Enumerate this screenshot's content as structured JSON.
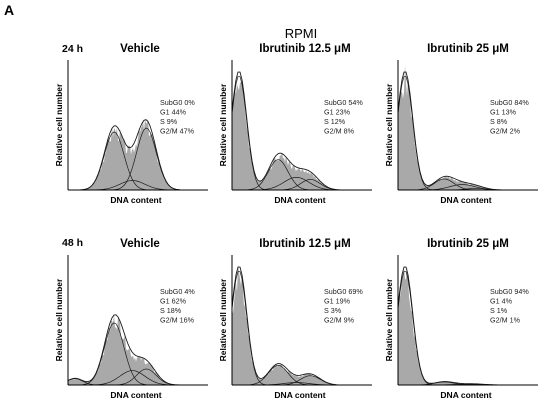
{
  "figure": {
    "panel_letter": "A",
    "condition": "RPMI",
    "xlabel": "DNA content",
    "ylabel": "Relative cell number"
  },
  "chart_data": [
    {
      "type": "histogram",
      "time": "24 h",
      "title": "Vehicle",
      "stats": {
        "SubG0": 0,
        "G1": 44,
        "S": 9,
        "G2/M": 47
      },
      "stat_labels": [
        "SubG0 0%",
        "G1 44%",
        "S 9%",
        "G2/M 47%"
      ]
    },
    {
      "type": "histogram",
      "time": "24 h",
      "title": "Ibrutinib 12.5 μM",
      "stats": {
        "SubG0": 54,
        "G1": 23,
        "S": 12,
        "G2/M": 8
      },
      "stat_labels": [
        "SubG0 54%",
        "G1 23%",
        "S 12%",
        "G2/M 8%"
      ]
    },
    {
      "type": "histogram",
      "time": "24 h",
      "title": "Ibrutinib  25 μM",
      "stats": {
        "SubG0": 84,
        "G1": 13,
        "S": 8,
        "G2/M": 2
      },
      "stat_labels": [
        "SubG0 84%",
        "G1 13%",
        "S 8%",
        "G2/M 2%"
      ]
    },
    {
      "type": "histogram",
      "time": "48 h",
      "title": "Vehicle",
      "stats": {
        "SubG0": 4,
        "G1": 62,
        "S": 18,
        "G2/M": 16
      },
      "stat_labels": [
        "SubG0 4%",
        "G1 62%",
        "S 18%",
        "G2/M 16%"
      ]
    },
    {
      "type": "histogram",
      "time": "48 h",
      "title": "Ibrutinib 12.5 μM",
      "stats": {
        "SubG0": 69,
        "G1": 19,
        "S": 3,
        "G2/M": 9
      },
      "stat_labels": [
        "SubG0 69%",
        "G1 19%",
        "S 3%",
        "G2/M 9%"
      ]
    },
    {
      "type": "histogram",
      "time": "48 h",
      "title": "Ibrutinib  25 μM",
      "stats": {
        "SubG0": 94,
        "G1": 4,
        "S": 1,
        "G2/M": 1
      },
      "stat_labels": [
        "SubG0 94%",
        "G1 4%",
        "S 1%",
        "G2/M 1%"
      ]
    }
  ],
  "colors": {
    "fill": "#a9a9a9",
    "line": "#1a1a1a",
    "axis": "#000000"
  }
}
